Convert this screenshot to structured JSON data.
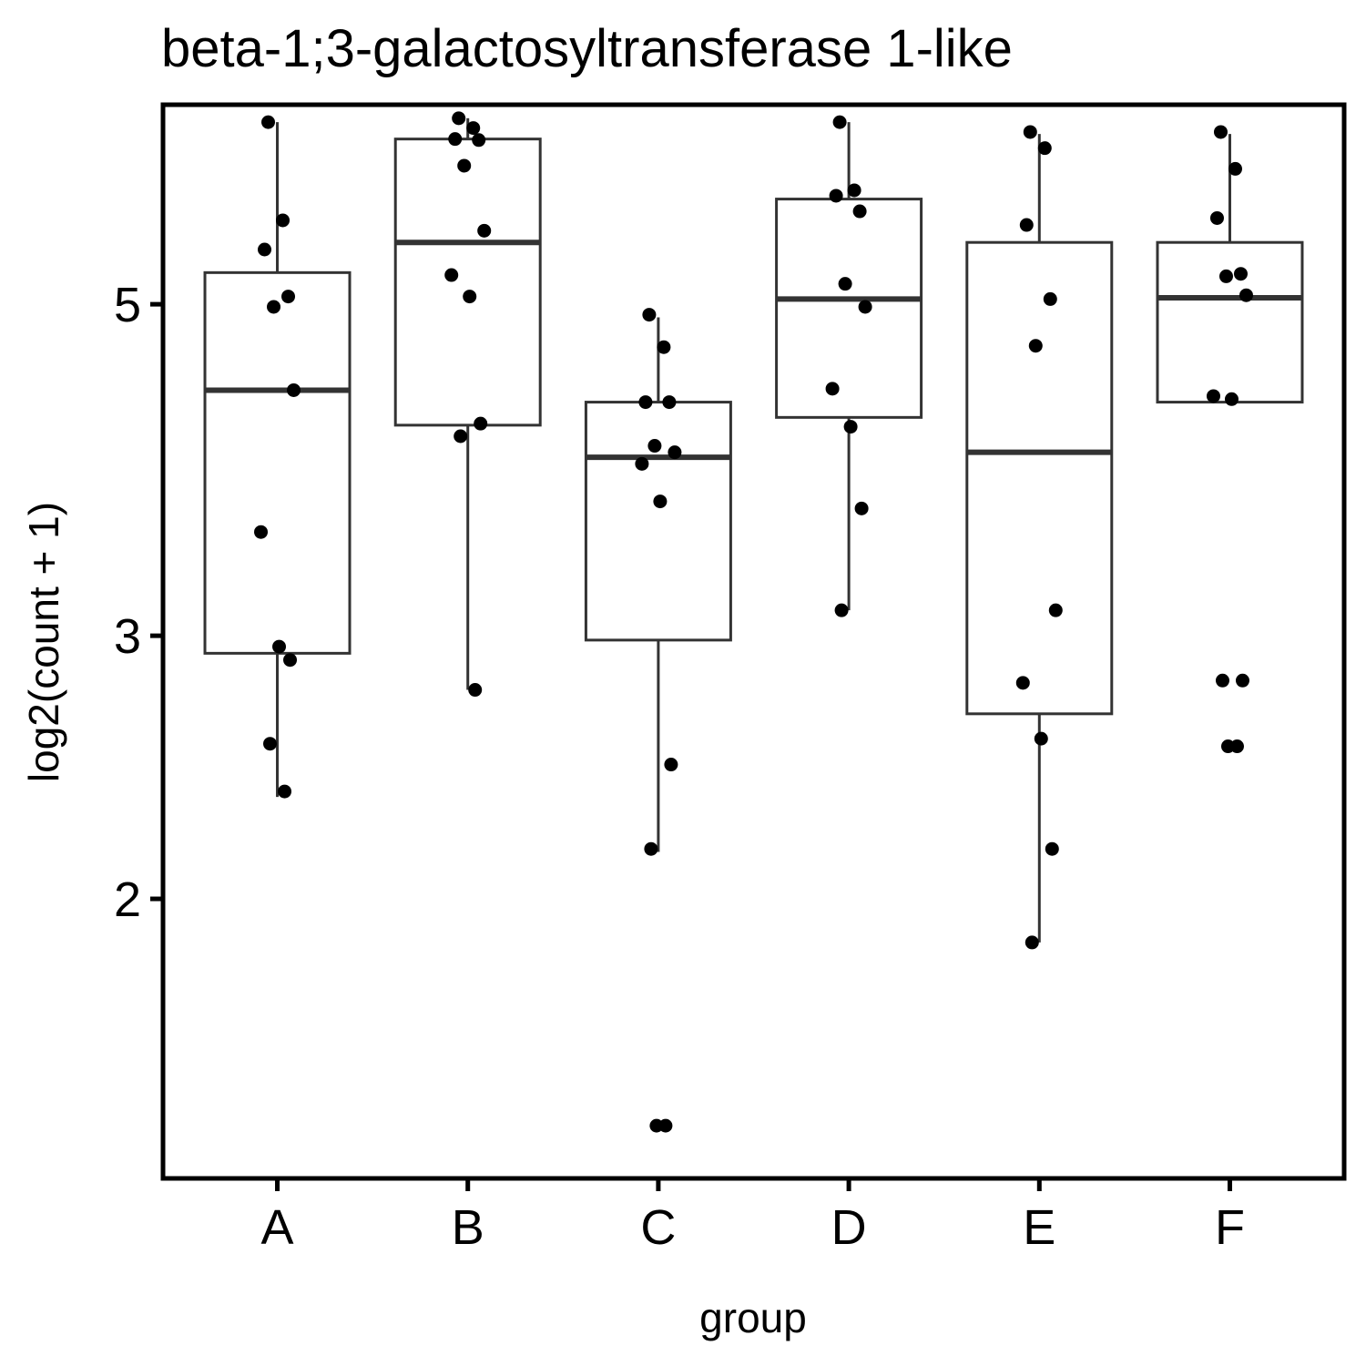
{
  "chart_data": {
    "type": "box",
    "title": "beta-1;3-galactosyltransferase 1-like",
    "xlabel": "group",
    "ylabel": "log2(count + 1)",
    "y_scale": "log",
    "ylim": [
      1.3,
      6.8
    ],
    "yticks": [
      2,
      3,
      5
    ],
    "categories": [
      "A",
      "B",
      "C",
      "D",
      "E",
      "F"
    ],
    "grid": false,
    "boxes": [
      {
        "group": "A",
        "q1": 2.92,
        "median": 4.38,
        "q3": 5.25,
        "whisker_low": 2.34,
        "whisker_high": 6.62
      },
      {
        "group": "B",
        "q1": 4.15,
        "median": 5.5,
        "q3": 6.45,
        "whisker_low": 2.76,
        "whisker_high": 6.66
      },
      {
        "group": "C",
        "q1": 2.98,
        "median": 3.95,
        "q3": 4.3,
        "whisker_low": 2.15,
        "whisker_high": 4.9
      },
      {
        "group": "D",
        "q1": 4.2,
        "median": 5.04,
        "q3": 5.88,
        "whisker_low": 3.12,
        "whisker_high": 6.62
      },
      {
        "group": "E",
        "q1": 2.66,
        "median": 3.98,
        "q3": 5.5,
        "whisker_low": 1.87,
        "whisker_high": 6.5
      },
      {
        "group": "F",
        "q1": 4.3,
        "median": 5.05,
        "q3": 5.5,
        "whisker_low": 4.28,
        "whisker_high": 6.5
      }
    ],
    "points": [
      {
        "group": "A",
        "values": [
          6.62,
          5.69,
          5.44,
          5.06,
          4.98,
          4.38,
          3.52,
          2.95,
          2.89,
          2.54,
          2.36
        ]
      },
      {
        "group": "B",
        "values": [
          6.66,
          6.56,
          6.45,
          6.44,
          6.19,
          5.6,
          5.23,
          5.06,
          4.16,
          4.08,
          2.76
        ]
      },
      {
        "group": "C",
        "values": [
          4.92,
          4.68,
          4.3,
          4.3,
          4.02,
          3.98,
          3.91,
          3.69,
          2.46,
          2.16,
          1.41,
          1.41
        ]
      },
      {
        "group": "D",
        "values": [
          6.62,
          5.96,
          5.91,
          5.77,
          5.16,
          4.98,
          4.39,
          4.14,
          3.65,
          3.12
        ]
      },
      {
        "group": "E",
        "values": [
          6.52,
          6.36,
          5.65,
          5.04,
          4.69,
          3.12,
          2.79,
          2.56,
          2.16,
          1.87
        ]
      },
      {
        "group": "F",
        "values": [
          6.52,
          6.16,
          5.71,
          5.24,
          5.22,
          5.07,
          4.34,
          4.32,
          2.8,
          2.8,
          2.53,
          2.53
        ]
      }
    ],
    "colors": {
      "box": "#333333",
      "point": "#000000",
      "frame": "#000000"
    }
  }
}
